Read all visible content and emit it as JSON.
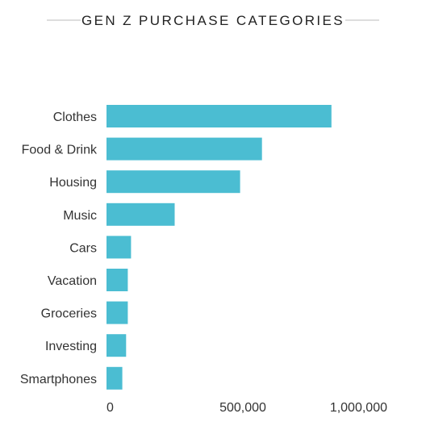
{
  "chart_data": {
    "type": "bar",
    "orientation": "horizontal",
    "title": "GEN Z PURCHASE CATEGORIES",
    "categories": [
      "Clothes",
      "Food & Drink",
      "Housing",
      "Music",
      "Cars",
      "Vacation",
      "Groceries",
      "Investing",
      "Smartphones"
    ],
    "values": [
      825000,
      570000,
      490000,
      250000,
      90000,
      78000,
      78000,
      72000,
      58000
    ],
    "x_ticks": [
      0,
      500000,
      1000000
    ],
    "x_tick_labels": [
      "0",
      "500,000",
      "1,000,000"
    ],
    "xlim": [
      0,
      1000000
    ],
    "grid": false,
    "legend": "none",
    "bar_color": "#4bbdd2",
    "title_rule_color": "#bbbbbb"
  }
}
